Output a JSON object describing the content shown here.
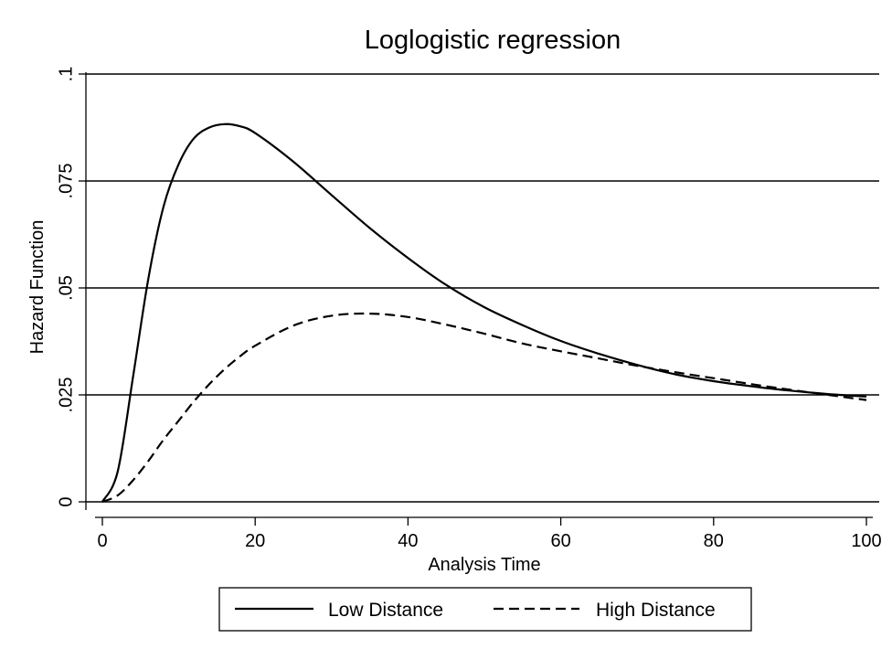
{
  "chart_data": {
    "type": "line",
    "title": "Loglogistic regression",
    "xlabel": "Analysis Time",
    "ylabel": "Hazard Function",
    "xlim": [
      0,
      100
    ],
    "ylim": [
      0,
      0.1
    ],
    "xticks": [
      0,
      20,
      40,
      60,
      80,
      100
    ],
    "xtick_labels": [
      "0",
      "20",
      "40",
      "60",
      "80",
      "100"
    ],
    "yticks": [
      0,
      0.025,
      0.05,
      0.075,
      0.1
    ],
    "ytick_labels": [
      "0",
      ".025",
      ".05",
      ".075",
      ".1"
    ],
    "grid": "horizontal",
    "legend_position": "bottom",
    "x": [
      0,
      2,
      4,
      6,
      8,
      10,
      12,
      14,
      16,
      18,
      20,
      25,
      30,
      35,
      40,
      45,
      50,
      55,
      60,
      65,
      70,
      75,
      80,
      85,
      90,
      95,
      100
    ],
    "series": [
      {
        "name": "Low Distance",
        "style": "solid",
        "values": [
          0,
          0.007,
          0.029,
          0.052,
          0.069,
          0.079,
          0.085,
          0.0875,
          0.0883,
          0.0878,
          0.0862,
          0.0795,
          0.0717,
          0.064,
          0.057,
          0.0507,
          0.0455,
          0.0413,
          0.0376,
          0.0346,
          0.032,
          0.0298,
          0.0282,
          0.027,
          0.026,
          0.0252,
          0.0246
        ]
      },
      {
        "name": "High Distance",
        "style": "dashed",
        "values": [
          0,
          0.0015,
          0.005,
          0.0095,
          0.0145,
          0.019,
          0.0235,
          0.0275,
          0.031,
          0.034,
          0.0365,
          0.0412,
          0.0435,
          0.044,
          0.0432,
          0.0414,
          0.0393,
          0.037,
          0.0352,
          0.0335,
          0.0318,
          0.0303,
          0.0289,
          0.0275,
          0.0262,
          0.025,
          0.0238
        ]
      }
    ]
  }
}
